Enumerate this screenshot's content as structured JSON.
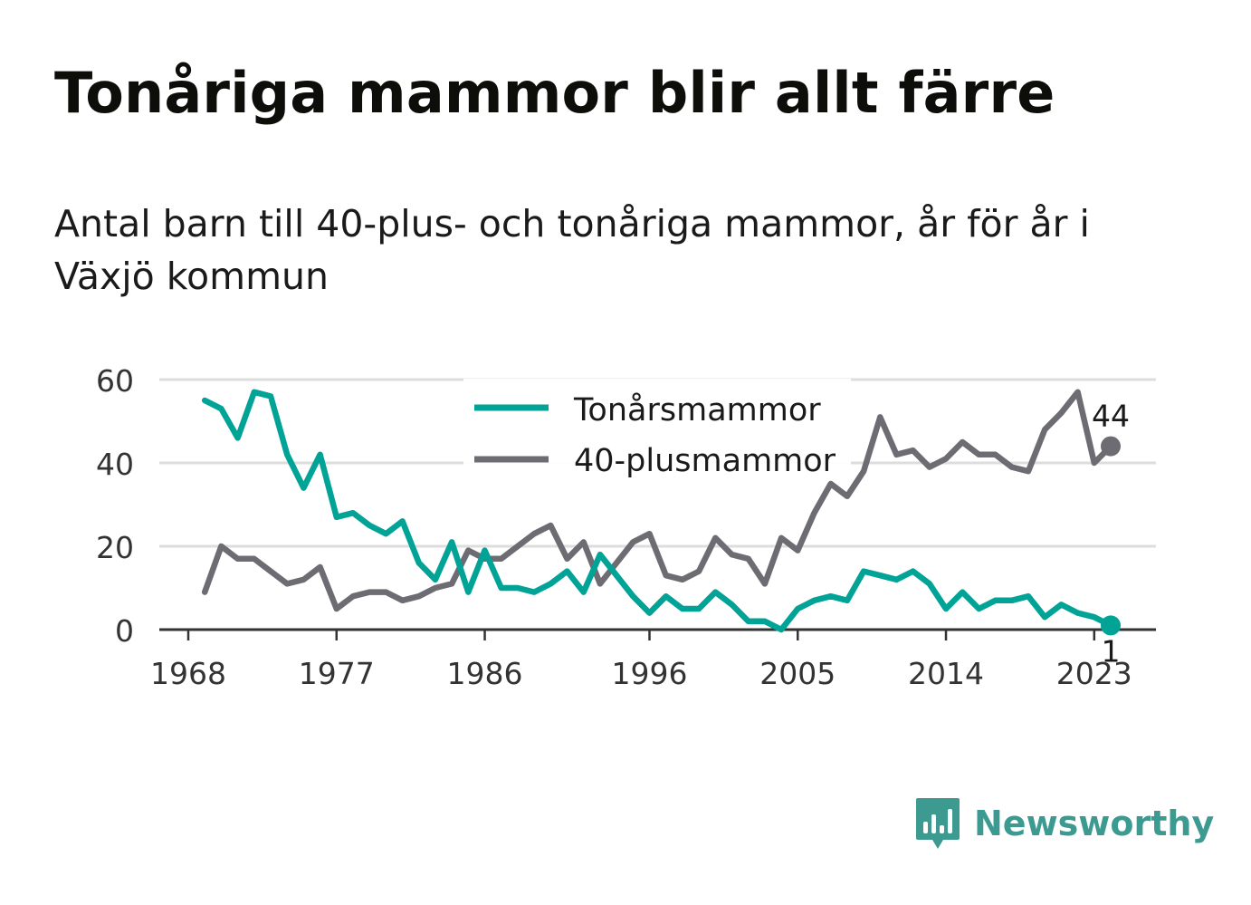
{
  "title": "Tonåriga mammor blir allt färre",
  "subtitle": "Antal barn till 40-plus- och tonåriga mammor, år för år i Växjö kommun",
  "brand": "Newsworthy",
  "colors": {
    "teen": "#00a396",
    "plus40": "#6d6c73",
    "grid": "#dddddd",
    "axis": "#333333"
  },
  "chart_data": {
    "type": "line",
    "x_ticks": [
      1968,
      1977,
      1986,
      1996,
      2005,
      2014,
      2023
    ],
    "y_ticks": [
      0,
      20,
      40,
      60
    ],
    "xlim": [
      1968,
      2026
    ],
    "ylim": [
      0,
      60
    ],
    "grid": true,
    "legend_position": "top-center",
    "x": [
      1969,
      1970,
      1971,
      1972,
      1973,
      1974,
      1975,
      1976,
      1977,
      1978,
      1979,
      1980,
      1981,
      1982,
      1983,
      1984,
      1985,
      1986,
      1987,
      1988,
      1989,
      1990,
      1991,
      1992,
      1993,
      1994,
      1995,
      1996,
      1997,
      1998,
      1999,
      2000,
      2001,
      2002,
      2003,
      2004,
      2005,
      2006,
      2007,
      2008,
      2009,
      2010,
      2011,
      2012,
      2013,
      2014,
      2015,
      2016,
      2017,
      2018,
      2019,
      2020,
      2021,
      2022,
      2023,
      2024
    ],
    "series": [
      {
        "name": "Tonårsmammor",
        "key": "teen",
        "end_label": "1",
        "values": [
          55,
          53,
          46,
          57,
          56,
          42,
          34,
          42,
          27,
          28,
          25,
          23,
          26,
          16,
          12,
          21,
          9,
          19,
          10,
          10,
          9,
          11,
          14,
          9,
          18,
          13,
          8,
          4,
          8,
          5,
          5,
          9,
          6,
          2,
          2,
          0,
          5,
          7,
          8,
          7,
          14,
          13,
          12,
          14,
          11,
          5,
          9,
          5,
          7,
          7,
          8,
          3,
          6,
          4,
          3,
          1
        ]
      },
      {
        "name": "40-plusmammor",
        "key": "plus40",
        "end_label": "44",
        "values": [
          9,
          20,
          17,
          17,
          14,
          11,
          12,
          15,
          5,
          8,
          9,
          9,
          7,
          8,
          10,
          11,
          19,
          17,
          17,
          20,
          23,
          25,
          17,
          21,
          11,
          16,
          21,
          23,
          13,
          12,
          14,
          22,
          18,
          17,
          11,
          22,
          19,
          28,
          35,
          32,
          38,
          51,
          42,
          43,
          39,
          41,
          45,
          42,
          42,
          39,
          38,
          48,
          52,
          57,
          40,
          44
        ]
      }
    ]
  }
}
